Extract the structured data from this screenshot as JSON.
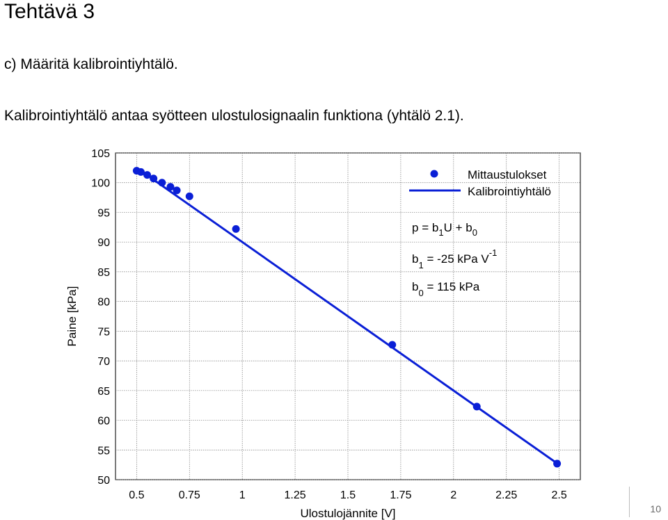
{
  "slide": {
    "title": "Tehtävä 3",
    "subtitle": "c) Määritä kalibrointiyhtälö.",
    "text": "Kalibrointiyhtälö antaa syötteen ulostulosignaalin funktiona (yhtälö 2.1).",
    "page_number": "10"
  },
  "chart_data": {
    "type": "scatter",
    "xlabel": "Ulostulojännite [V]",
    "ylabel": "Paine [kPa]",
    "xlim": [
      0.4,
      2.6
    ],
    "ylim": [
      50,
      105
    ],
    "x_ticks": [
      "0.5",
      "0.75",
      "1",
      "1.25",
      "1.5",
      "1.75",
      "2",
      "2.25",
      "2.5"
    ],
    "y_ticks": [
      "50",
      "55",
      "60",
      "65",
      "70",
      "75",
      "80",
      "85",
      "90",
      "95",
      "100",
      "105"
    ],
    "grid": true,
    "legend_position": "top-right",
    "color": "#0a1fd6",
    "series": [
      {
        "name": "Mittaustulokset",
        "kind": "points",
        "x": [
          0.5,
          0.52,
          0.55,
          0.58,
          0.62,
          0.66,
          0.69,
          0.75,
          0.97,
          1.71,
          2.11,
          2.49
        ],
        "y": [
          102.0,
          101.8,
          101.3,
          100.7,
          100.0,
          99.3,
          98.7,
          97.7,
          92.2,
          72.7,
          62.3,
          52.7
        ]
      },
      {
        "name": "Kalibrointiyhtälö",
        "kind": "line",
        "x": [
          0.5,
          2.49
        ],
        "y": [
          102.5,
          52.75
        ]
      }
    ],
    "annotations": {
      "equation": {
        "p": "p",
        "b": "b",
        "sub1": "1",
        "u": "U",
        "plus": "+",
        "sub0": "0",
        "eq": "="
      },
      "b1": {
        "b": "b",
        "sub": "1",
        "value": "= -25 kPa V",
        "sup": "-1"
      },
      "b0": {
        "b": "b",
        "sub": "0",
        "value": "= 115 kPa"
      }
    }
  }
}
